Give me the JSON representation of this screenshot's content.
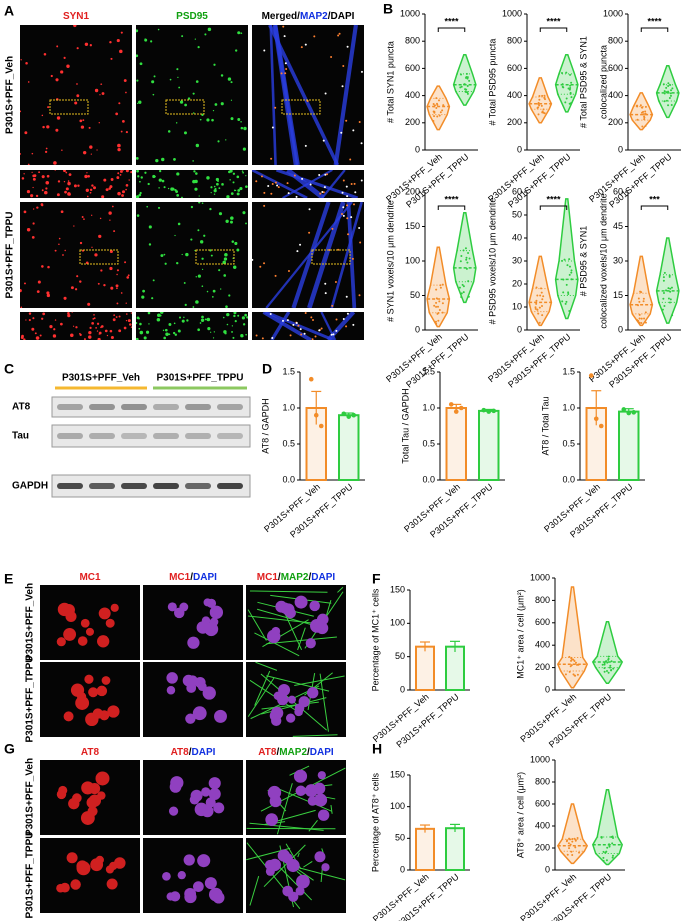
{
  "figure": {
    "panel_letters": [
      "A",
      "B",
      "C",
      "D",
      "E",
      "F",
      "G",
      "H"
    ],
    "a_columns": [
      [
        {
          "text": "SYN1",
          "color": "#e02020"
        }
      ],
      [
        {
          "text": "PSD95",
          "color": "#10a010"
        }
      ],
      [
        {
          "text": "Merged/",
          "color": "#000000"
        },
        {
          "text": "MAP2",
          "color": "#1030e0"
        },
        {
          "text": "/DAPI",
          "color": "#000000"
        }
      ]
    ],
    "a_rows": [
      "P301S+PFF_Veh",
      "P301S+PFF_TPPU"
    ],
    "c_groups": [
      {
        "text": "P301S+PFF_Veh",
        "color": "#f5b830"
      },
      {
        "text": "P301S+PFF_TPPU",
        "color": "#8cc860"
      }
    ],
    "c_bands": [
      "AT8",
      "Tau",
      "GAPDH"
    ],
    "e_columns": [
      [
        {
          "text": "MC1",
          "color": "#e02020"
        }
      ],
      [
        {
          "text": "MC1",
          "color": "#e02020"
        },
        {
          "text": "/",
          "color": "#000000"
        },
        {
          "text": "DAPI",
          "color": "#1030e0"
        }
      ],
      [
        {
          "text": "MC1",
          "color": "#e02020"
        },
        {
          "text": "/",
          "color": "#000000"
        },
        {
          "text": "MAP2",
          "color": "#10a010"
        },
        {
          "text": "/",
          "color": "#000000"
        },
        {
          "text": "DAPI",
          "color": "#1030e0"
        }
      ]
    ],
    "e_rows": [
      "P301S+PFF_Veh",
      "P301S+PFF_TPPU"
    ],
    "g_columns": [
      [
        {
          "text": "AT8",
          "color": "#e02020"
        }
      ],
      [
        {
          "text": "AT8",
          "color": "#e02020"
        },
        {
          "text": "/",
          "color": "#000000"
        },
        {
          "text": "DAPI",
          "color": "#1030e0"
        }
      ],
      [
        {
          "text": "AT8",
          "color": "#e02020"
        },
        {
          "text": "/",
          "color": "#000000"
        },
        {
          "text": "MAP2",
          "color": "#10a010"
        },
        {
          "text": "/",
          "color": "#000000"
        },
        {
          "text": "DAPI",
          "color": "#1030e0"
        }
      ]
    ],
    "g_rows": [
      "P301S+PFF_Veh",
      "P301S+PFF_TPPU"
    ]
  },
  "chart_data": [
    {
      "type": "violin",
      "ylabel": [
        "# Total SYN1 puncta"
      ],
      "categories": [
        "P301S+PFF_Veh",
        "P301S+PFF_TPPU"
      ],
      "colors": [
        "#f28c28",
        "#2ecc40"
      ],
      "stats": [
        {
          "min": 150,
          "q1": 260,
          "median": 320,
          "q3": 380,
          "max": 470
        },
        {
          "min": 330,
          "q1": 430,
          "median": 480,
          "q3": 560,
          "max": 700
        }
      ],
      "ylim": [
        0,
        1000
      ],
      "yticks": [
        0,
        200,
        400,
        600,
        800,
        1000
      ],
      "significance": "****"
    },
    {
      "type": "violin",
      "ylabel": [
        "# Total PSD95 puncta"
      ],
      "categories": [
        "P301S+PFF_Veh",
        "P301S+PFF_TPPU"
      ],
      "colors": [
        "#f28c28",
        "#2ecc40"
      ],
      "stats": [
        {
          "min": 200,
          "q1": 300,
          "median": 340,
          "q3": 390,
          "max": 530
        },
        {
          "min": 280,
          "q1": 410,
          "median": 480,
          "q3": 560,
          "max": 700
        }
      ],
      "ylim": [
        0,
        1000
      ],
      "yticks": [
        0,
        200,
        400,
        600,
        800,
        1000
      ],
      "significance": "****"
    },
    {
      "type": "violin",
      "ylabel": [
        "# Total PSD95 & SYN1",
        "colocalized puncta"
      ],
      "categories": [
        "P301S+PFF_Veh",
        "P301S+PFF_TPPU"
      ],
      "colors": [
        "#f28c28",
        "#2ecc40"
      ],
      "stats": [
        {
          "min": 150,
          "q1": 220,
          "median": 260,
          "q3": 320,
          "max": 420
        },
        {
          "min": 240,
          "q1": 360,
          "median": 420,
          "q3": 480,
          "max": 620
        }
      ],
      "ylim": [
        0,
        1000
      ],
      "yticks": [
        0,
        200,
        400,
        600,
        800,
        1000
      ],
      "significance": "****"
    },
    {
      "type": "violin",
      "ylabel": [
        "# SYN1 voxels/10 μm dendrite"
      ],
      "categories": [
        "P301S+PFF_Veh",
        "P301S+PFF_TPPU"
      ],
      "colors": [
        "#f28c28",
        "#2ecc40"
      ],
      "stats": [
        {
          "min": 5,
          "q1": 25,
          "median": 45,
          "q3": 65,
          "max": 120
        },
        {
          "min": 40,
          "q1": 70,
          "median": 90,
          "q3": 115,
          "max": 170
        }
      ],
      "ylim": [
        0,
        200
      ],
      "yticks": [
        0,
        50,
        100,
        150,
        200
      ],
      "significance": "****"
    },
    {
      "type": "violin",
      "ylabel": [
        "# PSD95 voxels/10 μm dendrite"
      ],
      "categories": [
        "P301S+PFF_Veh",
        "P301S+PFF_TPPU"
      ],
      "colors": [
        "#f28c28",
        "#2ecc40"
      ],
      "stats": [
        {
          "min": 2,
          "q1": 8,
          "median": 12,
          "q3": 18,
          "max": 32
        },
        {
          "min": 5,
          "q1": 15,
          "median": 22,
          "q3": 30,
          "max": 57
        }
      ],
      "ylim": [
        0,
        60
      ],
      "yticks": [
        0,
        10,
        20,
        30,
        40,
        50,
        60
      ],
      "significance": "****"
    },
    {
      "type": "violin",
      "ylabel": [
        "# PSD95 & SYN1",
        "colocalized voxels/10 μm dendrite"
      ],
      "categories": [
        "P301S+PFF_Veh",
        "P301S+PFF_TPPU"
      ],
      "colors": [
        "#f28c28",
        "#2ecc40"
      ],
      "stats": [
        {
          "min": 2,
          "q1": 7,
          "median": 11,
          "q3": 16,
          "max": 32
        },
        {
          "min": 3,
          "q1": 12,
          "median": 17,
          "q3": 24,
          "max": 40
        }
      ],
      "ylim": [
        0,
        60
      ],
      "yticks": [
        0,
        15,
        30,
        45,
        60
      ],
      "significance": "***"
    },
    {
      "type": "bar",
      "ylabel": [
        "AT8 / GAPDH"
      ],
      "categories": [
        "P301S+PFF_Veh",
        "P301S+PFF_TPPU"
      ],
      "colors": [
        "#f28c28",
        "#2ecc40"
      ],
      "values": [
        1.0,
        0.9
      ],
      "errors": [
        0.23,
        0.03
      ],
      "points": [
        [
          1.4,
          0.9,
          0.75
        ],
        [
          0.92,
          0.88,
          0.9
        ]
      ],
      "ylim": [
        0,
        1.5
      ],
      "yticks": [
        {
          "value": 0,
          "label": "0.0"
        },
        0.5,
        {
          "value": 1,
          "label": "1.0"
        },
        1.5
      ]
    },
    {
      "type": "bar",
      "ylabel": [
        "Total Tau / GAPDH"
      ],
      "categories": [
        "P301S+PFF_Veh",
        "P301S+PFF_TPPU"
      ],
      "colors": [
        "#f28c28",
        "#2ecc40"
      ],
      "values": [
        1.0,
        0.96
      ],
      "errors": [
        0.05,
        0.02
      ],
      "points": [
        [
          1.05,
          0.95,
          1.0
        ],
        [
          0.97,
          0.95,
          0.96
        ]
      ],
      "ylim": [
        0,
        1.5
      ],
      "yticks": [
        {
          "value": 0,
          "label": "0.0"
        },
        0.5,
        {
          "value": 1,
          "label": "1.0"
        },
        1.5
      ]
    },
    {
      "type": "bar",
      "ylabel": [
        "AT8 / Total Tau"
      ],
      "categories": [
        "P301S+PFF_Veh",
        "P301S+PFF_TPPU"
      ],
      "colors": [
        "#f28c28",
        "#2ecc40"
      ],
      "values": [
        1.0,
        0.95
      ],
      "errors": [
        0.24,
        0.04
      ],
      "points": [
        [
          1.45,
          0.85,
          0.75
        ],
        [
          0.98,
          0.93,
          0.94
        ]
      ],
      "ylim": [
        0,
        1.5
      ],
      "yticks": [
        {
          "value": 0,
          "label": "0.0"
        },
        0.5,
        {
          "value": 1,
          "label": "1.0"
        },
        1.5
      ]
    },
    {
      "type": "bar",
      "ylabel": [
        "Percentage of MC1⁺ cells"
      ],
      "categories": [
        "P301S+PFF_Veh",
        "P301S+PFF_TPPU"
      ],
      "colors": [
        "#f28c28",
        "#2ecc40"
      ],
      "values": [
        65,
        65
      ],
      "errors": [
        7,
        8
      ],
      "ylim": [
        0,
        150
      ],
      "yticks": [
        0,
        50,
        100,
        150
      ]
    },
    {
      "type": "violin",
      "ylabel": [
        "MC1⁺ area / cell (μm²)"
      ],
      "categories": [
        "P301S+PFF_Veh",
        "P301S+PFF_TPPU"
      ],
      "colors": [
        "#f28c28",
        "#2ecc40"
      ],
      "stats": [
        {
          "min": 20,
          "q1": 170,
          "median": 230,
          "q3": 290,
          "max": 920
        },
        {
          "min": 60,
          "q1": 200,
          "median": 250,
          "q3": 300,
          "max": 610
        }
      ],
      "ylim": [
        0,
        1000
      ],
      "yticks": [
        0,
        200,
        400,
        600,
        800,
        1000
      ]
    },
    {
      "type": "bar",
      "ylabel": [
        "Percentage of AT8⁺ cells"
      ],
      "categories": [
        "P301S+PFF_Veh",
        "P301S+PFF_TPPU"
      ],
      "colors": [
        "#f28c28",
        "#2ecc40"
      ],
      "values": [
        65,
        66
      ],
      "errors": [
        6,
        6
      ],
      "ylim": [
        0,
        150
      ],
      "yticks": [
        0,
        50,
        100,
        150
      ]
    },
    {
      "type": "violin",
      "ylabel": [
        "AT8⁺ area / cell (μm²)"
      ],
      "categories": [
        "P301S+PFF_Veh",
        "P301S+PFF_TPPU"
      ],
      "colors": [
        "#f28c28",
        "#2ecc40"
      ],
      "stats": [
        {
          "min": 60,
          "q1": 170,
          "median": 220,
          "q3": 280,
          "max": 600
        },
        {
          "min": 50,
          "q1": 150,
          "median": 230,
          "q3": 300,
          "max": 730
        }
      ],
      "ylim": [
        0,
        1000
      ],
      "yticks": [
        0,
        200,
        400,
        600,
        800,
        1000
      ]
    }
  ]
}
